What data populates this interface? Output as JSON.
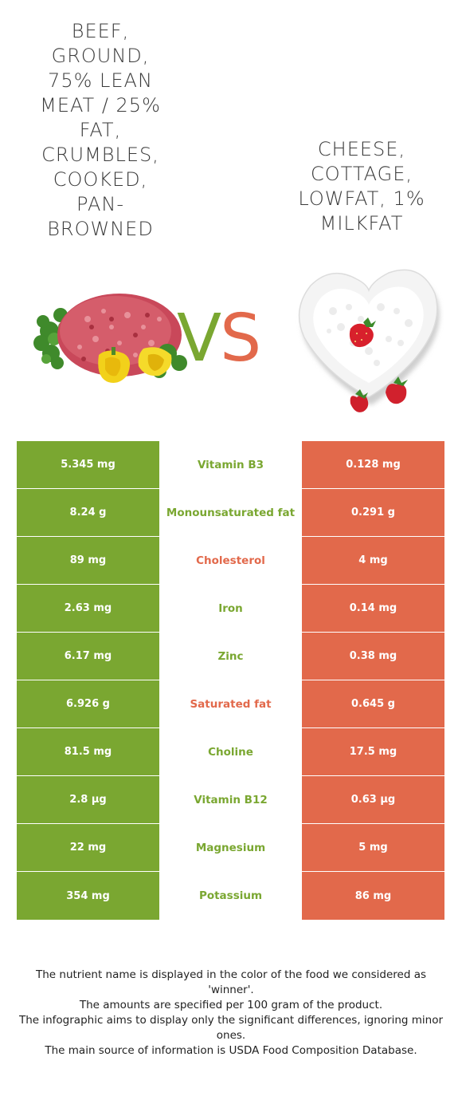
{
  "food_left": {
    "name": "Beef, ground, 75% lean meat / 25% fat, crumbles, cooked, pan-browned"
  },
  "food_right": {
    "name": "Cheese, cottage, lowfat, 1% milkfat"
  },
  "vs_label": {
    "v": "V",
    "s": "S"
  },
  "colors": {
    "left_winner": "#7aa731",
    "right_winner": "#e2694b"
  },
  "nutrients": [
    {
      "name": "Vitamin B3",
      "left": "5.345 mg",
      "right": "0.128 mg",
      "winner": "left"
    },
    {
      "name": "Monounsaturated fat",
      "left": "8.24 g",
      "right": "0.291 g",
      "winner": "left"
    },
    {
      "name": "Cholesterol",
      "left": "89 mg",
      "right": "4 mg",
      "winner": "right"
    },
    {
      "name": "Iron",
      "left": "2.63 mg",
      "right": "0.14 mg",
      "winner": "left"
    },
    {
      "name": "Zinc",
      "left": "6.17 mg",
      "right": "0.38 mg",
      "winner": "left"
    },
    {
      "name": "Saturated fat",
      "left": "6.926 g",
      "right": "0.645 g",
      "winner": "right"
    },
    {
      "name": "Choline",
      "left": "81.5 mg",
      "right": "17.5 mg",
      "winner": "left"
    },
    {
      "name": "Vitamin B12",
      "left": "2.8 µg",
      "right": "0.63 µg",
      "winner": "left"
    },
    {
      "name": "Magnesium",
      "left": "22 mg",
      "right": "5 mg",
      "winner": "left"
    },
    {
      "name": "Potassium",
      "left": "354 mg",
      "right": "86 mg",
      "winner": "left"
    }
  ],
  "footer": [
    "The nutrient name is displayed in the color of the food we considered as 'winner'.",
    "The amounts are specified per 100 gram of the product.",
    "The infographic aims to display only the significant differences, ignoring minor ones.",
    "The main source of information is USDA Food Composition Database."
  ]
}
